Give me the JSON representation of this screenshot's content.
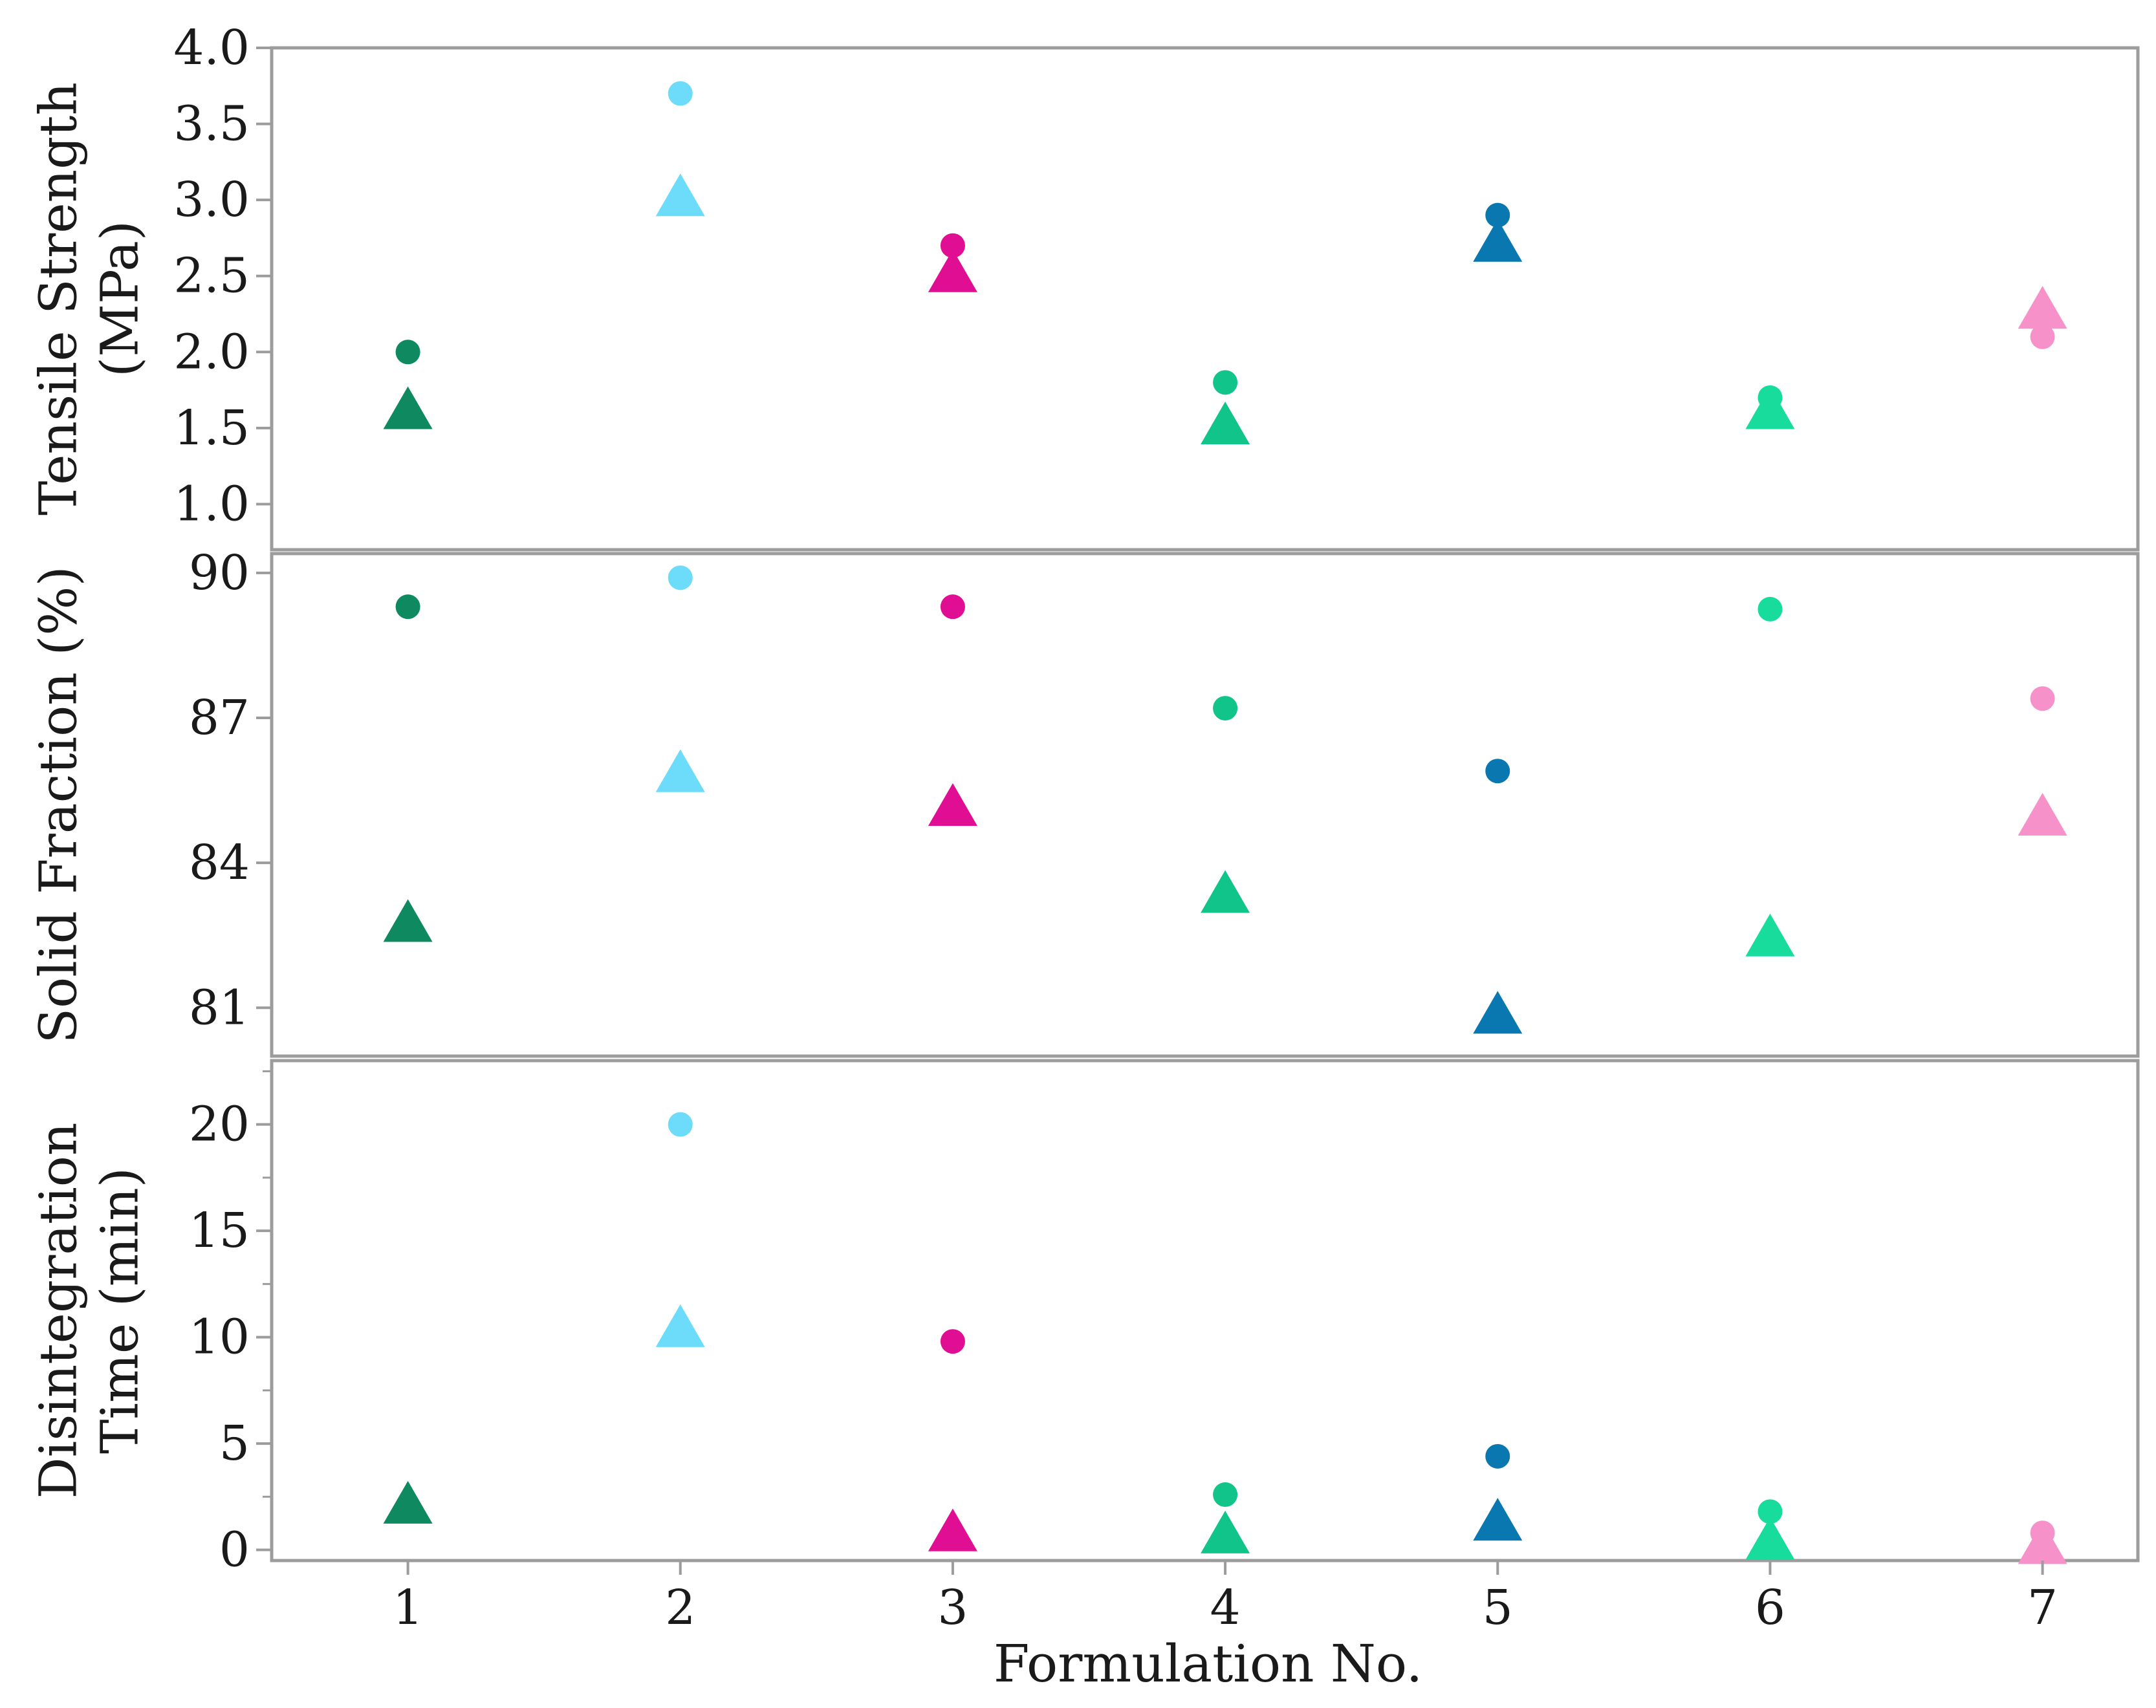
{
  "colors": {
    "f1": "#0f8a60",
    "f2": "#6cdcfa",
    "f3": "#e00e93",
    "f4": "#11c48a",
    "f5": "#0a78b0",
    "f6": "#17dc9c",
    "f7": "#f791c9",
    "frame": "#9c9c9c"
  },
  "markers": {
    "circle": "circle",
    "triangle": "triangle"
  },
  "chart_data": [
    {
      "type": "scatter",
      "panel": "tensile",
      "ylabel": [
        "Tensile Strength",
        "(MPa)"
      ],
      "ylim": [
        0.7,
        4.0
      ],
      "yticks": [
        "1.0",
        "1.5",
        "2.0",
        "2.5",
        "3.0",
        "3.5",
        "4.0"
      ],
      "xlim": [
        0.5,
        7.35
      ],
      "series": [
        {
          "name": "circle",
          "x": [
            1,
            2,
            3,
            4,
            5,
            6,
            7
          ],
          "y": [
            2.0,
            3.7,
            2.7,
            1.8,
            2.9,
            1.7,
            2.1
          ]
        },
        {
          "name": "triangle",
          "x": [
            1,
            2,
            3,
            4,
            5,
            6,
            7
          ],
          "y": [
            1.6,
            3.0,
            2.5,
            1.5,
            2.7,
            1.6,
            2.26
          ]
        }
      ]
    },
    {
      "type": "scatter",
      "panel": "solid_fraction",
      "ylabel": [
        "Solid Fraction (%)"
      ],
      "ylim": [
        80.0,
        90.4
      ],
      "yticks": [
        "81",
        "84",
        "87",
        "90"
      ],
      "xlim": [
        0.5,
        7.35
      ],
      "series": [
        {
          "name": "circle",
          "x": [
            1,
            2,
            3,
            4,
            5,
            6,
            7
          ],
          "y": [
            89.3,
            89.9,
            89.3,
            87.2,
            85.9,
            89.25,
            87.4
          ]
        },
        {
          "name": "triangle",
          "x": [
            1,
            2,
            3,
            4,
            5,
            6,
            7
          ],
          "y": [
            82.7,
            85.8,
            85.1,
            83.3,
            80.8,
            82.4,
            84.9
          ]
        }
      ]
    },
    {
      "type": "scatter",
      "panel": "disintegration",
      "ylabel": [
        "Disintegration",
        "Time (min)"
      ],
      "ylim": [
        -0.5,
        23.0
      ],
      "yticks": [
        "0",
        "5",
        "10",
        "15",
        "20"
      ],
      "xlim": [
        0.5,
        7.35
      ],
      "xlabel": "Formulation No.",
      "xticks": [
        "1",
        "2",
        "3",
        "4",
        "5",
        "6",
        "7"
      ],
      "series": [
        {
          "name": "circle",
          "x": [
            1,
            2,
            3,
            4,
            5,
            6,
            7
          ],
          "y": [
            2.0,
            20.0,
            9.8,
            2.6,
            4.4,
            1.8,
            0.8
          ]
        },
        {
          "name": "triangle",
          "x": [
            1,
            2,
            3,
            4,
            5,
            6,
            7
          ],
          "y": [
            2.0,
            10.3,
            0.7,
            0.6,
            1.2,
            0.3,
            0.1
          ]
        }
      ]
    }
  ]
}
